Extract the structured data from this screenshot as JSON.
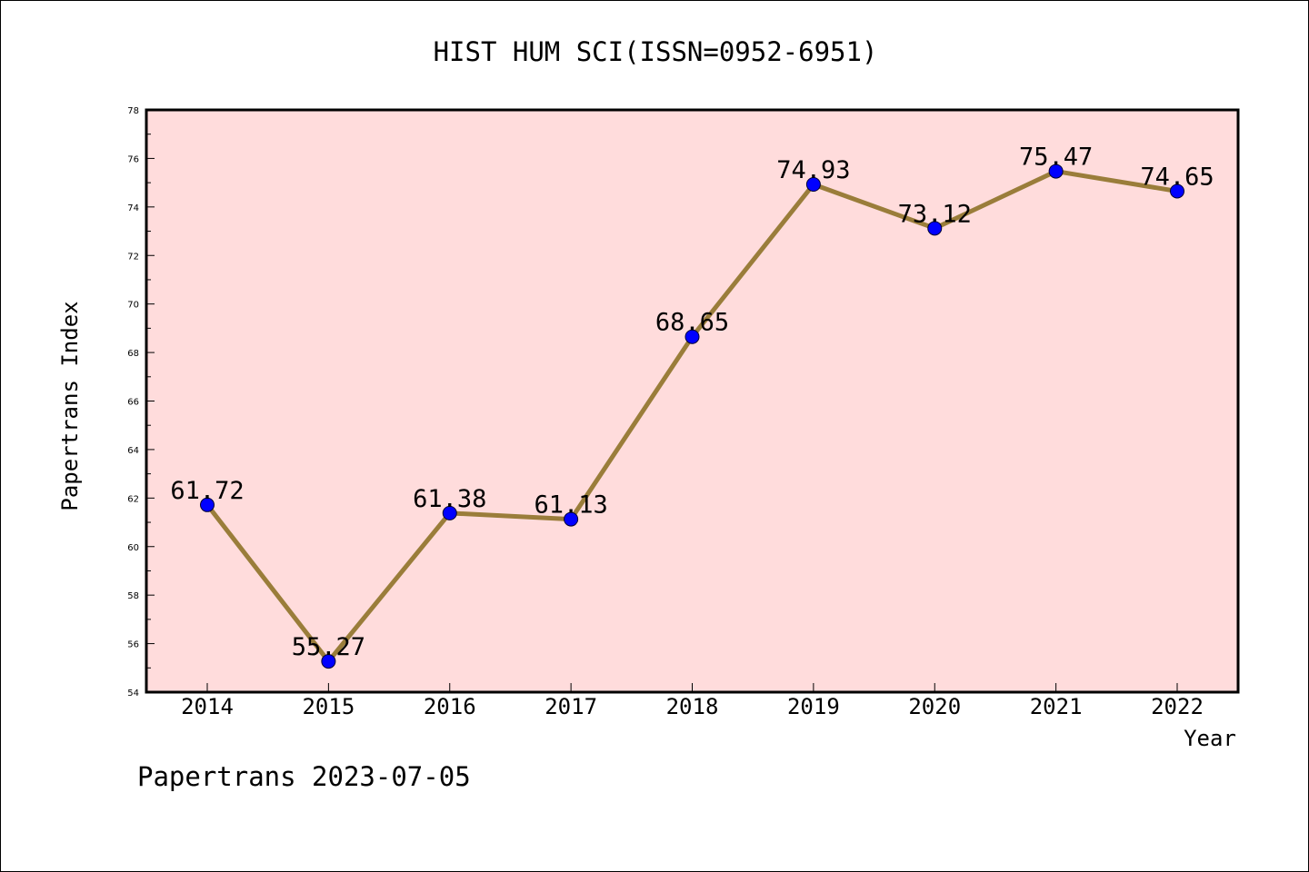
{
  "chart_data": {
    "type": "line",
    "title": "HIST HUM SCI(ISSN=0952-6951)",
    "xlabel": "Year",
    "ylabel": "Papertrans Index",
    "categories": [
      "2014",
      "2015",
      "2016",
      "2017",
      "2018",
      "2019",
      "2020",
      "2021",
      "2022"
    ],
    "series": [
      {
        "values": [
          61.72,
          55.27,
          61.38,
          61.13,
          68.65,
          74.93,
          73.12,
          75.47,
          74.65
        ],
        "labels": [
          "61.72",
          "55.27",
          "61.38",
          "61.13",
          "68.65",
          "74.93",
          "73.12",
          "75.47",
          "74.65"
        ]
      }
    ],
    "ylim": [
      54,
      78
    ],
    "yticks": [
      "54",
      "56",
      "58",
      "60",
      "62",
      "64",
      "66",
      "68",
      "70",
      "72",
      "74",
      "76",
      "78"
    ],
    "grid": false,
    "footer": "Papertrans 2023-07-05",
    "colors": {
      "plot_background": "#ffdcdc",
      "line": "#9a7d3a",
      "marker": "#0000ff",
      "text": "#000000"
    }
  }
}
